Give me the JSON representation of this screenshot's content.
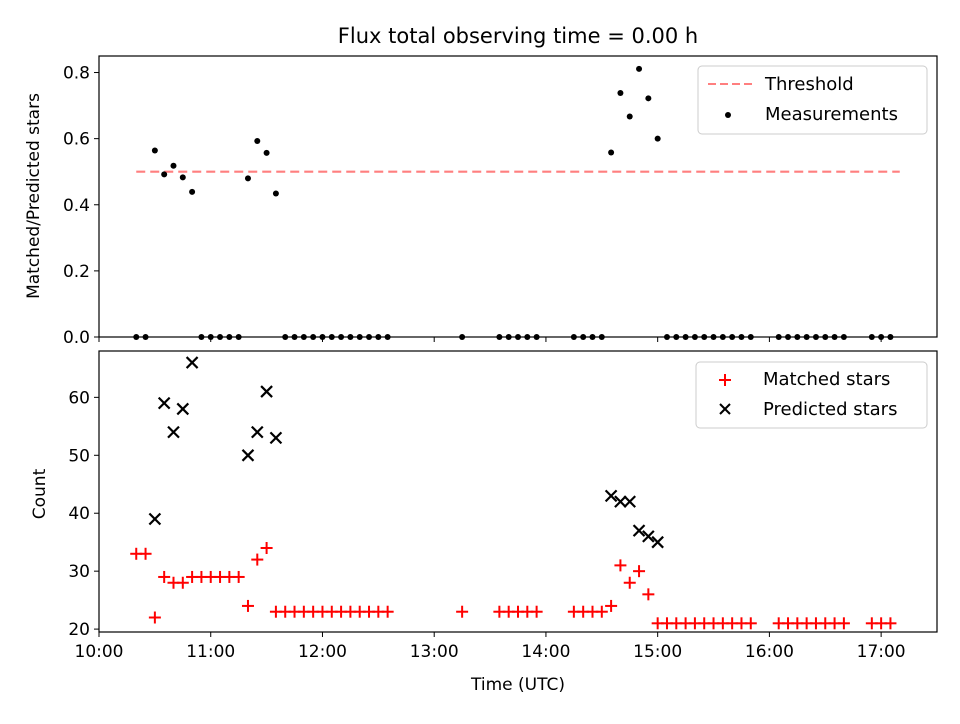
{
  "chart_data": [
    {
      "type": "scatter",
      "title": "Flux total observing time = 0.00 h",
      "xlabel": "",
      "ylabel": "Matched/Predicted stars",
      "ylim": [
        0,
        0.85
      ],
      "xlim": [
        "10:00",
        "17:30"
      ],
      "yticks": [
        "0.0",
        "0.2",
        "0.4",
        "0.6",
        "0.8"
      ],
      "legend": {
        "position": "top-right",
        "entries": [
          {
            "label": "Threshold",
            "color": "#ff7f7f",
            "style": "dashed-line"
          },
          {
            "label": "Measurements",
            "color": "#000000",
            "style": "dot"
          }
        ]
      },
      "series": [
        {
          "name": "Threshold",
          "x": [
            "10:20",
            "17:10"
          ],
          "y": [
            0.5,
            0.5
          ]
        },
        {
          "name": "Measurements",
          "x": [
            "10:20",
            "10:25",
            "10:30",
            "10:35",
            "10:40",
            "10:45",
            "10:50",
            "10:55",
            "11:00",
            "11:05",
            "11:10",
            "11:15",
            "11:20",
            "11:25",
            "11:30",
            "11:35",
            "11:40",
            "11:45",
            "11:50",
            "11:55",
            "12:00",
            "12:05",
            "12:10",
            "12:15",
            "12:20",
            "12:25",
            "12:30",
            "12:35",
            "13:15",
            "13:35",
            "13:40",
            "13:45",
            "13:50",
            "13:55",
            "14:15",
            "14:20",
            "14:25",
            "14:30",
            "14:35",
            "14:40",
            "14:45",
            "14:50",
            "14:55",
            "15:00",
            "15:05",
            "15:10",
            "15:15",
            "15:20",
            "15:25",
            "15:30",
            "15:35",
            "15:40",
            "15:45",
            "15:50",
            "16:05",
            "16:10",
            "16:15",
            "16:20",
            "16:25",
            "16:30",
            "16:35",
            "16:40",
            "16:55",
            "17:00",
            "17:05"
          ],
          "y": [
            0,
            0,
            0.564,
            0.492,
            0.518,
            0.483,
            0.439,
            0,
            0,
            0,
            0,
            0,
            0.48,
            0.593,
            0.557,
            0.434,
            0,
            0,
            0,
            0,
            0,
            0,
            0,
            0,
            0,
            0,
            0,
            0,
            0,
            0,
            0,
            0,
            0,
            0,
            0,
            0,
            0,
            0,
            0.558,
            0.738,
            0.667,
            0.811,
            0.722,
            0.6,
            0,
            0,
            0,
            0,
            0,
            0,
            0,
            0,
            0,
            0,
            0,
            0,
            0,
            0,
            0,
            0,
            0,
            0,
            0,
            0,
            0
          ]
        }
      ]
    },
    {
      "type": "scatter",
      "title": "",
      "xlabel": "Time (UTC)",
      "ylabel": "Count",
      "ylim": [
        19.5,
        68
      ],
      "xlim": [
        "10:00",
        "17:30"
      ],
      "xticks": [
        "10:00",
        "11:00",
        "12:00",
        "13:00",
        "14:00",
        "15:00",
        "16:00",
        "17:00"
      ],
      "yticks": [
        "20",
        "30",
        "40",
        "50",
        "60"
      ],
      "legend": {
        "position": "top-right",
        "entries": [
          {
            "label": "Matched stars",
            "color": "#ff0000",
            "style": "plus"
          },
          {
            "label": "Predicted stars",
            "color": "#000000",
            "style": "x"
          }
        ]
      },
      "series": [
        {
          "name": "Matched stars",
          "x": [
            "10:20",
            "10:25",
            "10:30",
            "10:35",
            "10:40",
            "10:45",
            "10:50",
            "10:55",
            "11:00",
            "11:05",
            "11:10",
            "11:15",
            "11:20",
            "11:25",
            "11:30",
            "11:35",
            "11:40",
            "11:45",
            "11:50",
            "11:55",
            "12:00",
            "12:05",
            "12:10",
            "12:15",
            "12:20",
            "12:25",
            "12:30",
            "12:35",
            "13:15",
            "13:35",
            "13:40",
            "13:45",
            "13:50",
            "13:55",
            "14:15",
            "14:20",
            "14:25",
            "14:30",
            "14:35",
            "14:40",
            "14:45",
            "14:50",
            "14:55",
            "15:00",
            "15:05",
            "15:10",
            "15:15",
            "15:20",
            "15:25",
            "15:30",
            "15:35",
            "15:40",
            "15:45",
            "15:50",
            "16:05",
            "16:10",
            "16:15",
            "16:20",
            "16:25",
            "16:30",
            "16:35",
            "16:40",
            "16:55",
            "17:00",
            "17:05"
          ],
          "y": [
            33,
            33,
            22,
            29,
            28,
            28,
            29,
            29,
            29,
            29,
            29,
            29,
            24,
            32,
            34,
            23,
            23,
            23,
            23,
            23,
            23,
            23,
            23,
            23,
            23,
            23,
            23,
            23,
            23,
            23,
            23,
            23,
            23,
            23,
            23,
            23,
            23,
            23,
            24,
            31,
            28,
            30,
            26,
            21,
            21,
            21,
            21,
            21,
            21,
            21,
            21,
            21,
            21,
            21,
            21,
            21,
            21,
            21,
            21,
            21,
            21,
            21,
            21,
            21,
            21
          ]
        },
        {
          "name": "Predicted stars",
          "x": [
            "10:30",
            "10:35",
            "10:40",
            "10:45",
            "10:50",
            "11:20",
            "11:25",
            "11:30",
            "11:35",
            "14:35",
            "14:40",
            "14:45",
            "14:50",
            "14:55",
            "15:00"
          ],
          "y": [
            39,
            59,
            54,
            58,
            66,
            50,
            54,
            61,
            53,
            43,
            42,
            42,
            37,
            36,
            35
          ]
        }
      ]
    }
  ]
}
